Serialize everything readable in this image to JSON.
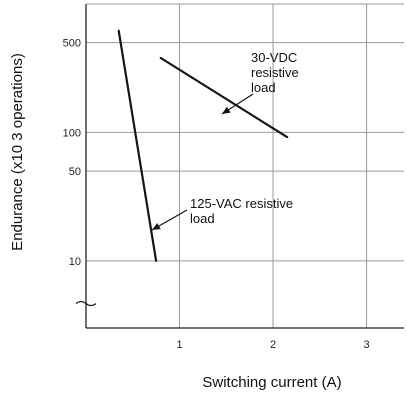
{
  "chart_data": {
    "type": "line",
    "xlabel": "Switching current (A)",
    "ylabel": "Endurance (x10 3 operations)",
    "y_scale": "log",
    "xlim": [
      0,
      3.4
    ],
    "ylim": [
      3,
      1000
    ],
    "x_ticks": [
      {
        "value": 1,
        "label": "1"
      },
      {
        "value": 2,
        "label": "2"
      },
      {
        "value": 3,
        "label": "3"
      }
    ],
    "y_ticks": [
      {
        "value": 500,
        "label": "500"
      },
      {
        "value": 100,
        "label": "100"
      },
      {
        "value": 50,
        "label": "50"
      },
      {
        "value": 10,
        "label": "10"
      }
    ],
    "grid": true,
    "series": [
      {
        "label_lines": [
          "125-VAC resistive",
          "load"
        ],
        "points": [
          {
            "x": 0.35,
            "y": 620
          },
          {
            "x": 0.75,
            "y": 10
          }
        ]
      },
      {
        "label_lines": [
          "30-VDC",
          "resistive",
          "load"
        ],
        "points": [
          {
            "x": 0.8,
            "y": 380
          },
          {
            "x": 2.15,
            "y": 92
          }
        ]
      }
    ]
  }
}
